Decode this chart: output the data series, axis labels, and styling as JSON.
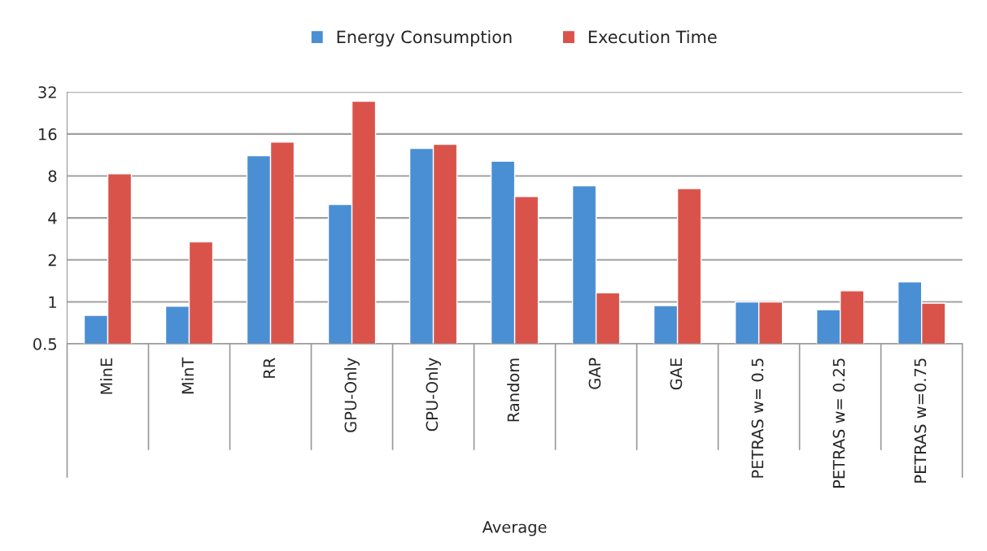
{
  "chart_data": {
    "type": "bar",
    "xlabel": "Average",
    "categories": [
      "MinE",
      "MinT",
      "RR",
      "GPU-Only",
      "CPU-Only",
      "Random",
      "GAP",
      "GAE",
      "PETRAS w= 0.5",
      "PETRAS w= 0.25",
      "PETRAS w=0.75"
    ],
    "series": [
      {
        "name": "Energy Consumption",
        "color": "#4a8fd4",
        "values": [
          0.8,
          0.93,
          11.2,
          5.0,
          12.6,
          10.2,
          6.8,
          0.94,
          1.0,
          0.88,
          1.39
        ]
      },
      {
        "name": "Execution Time",
        "color": "#d9534a",
        "values": [
          8.3,
          2.7,
          14.0,
          27.5,
          13.5,
          5.7,
          1.16,
          6.5,
          1.0,
          1.2,
          0.98
        ]
      }
    ],
    "log": "y",
    "ylim": [
      0.5,
      32
    ],
    "yticks": [
      0.5,
      1,
      2,
      4,
      8,
      16,
      32
    ],
    "grid": "y",
    "legend": "top"
  }
}
